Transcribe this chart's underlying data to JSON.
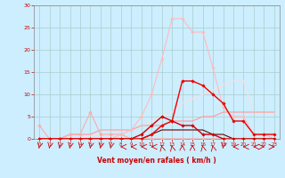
{
  "background_color": "#cceeff",
  "grid_color": "#aacccc",
  "xlabel": "Vent moyen/en rafales ( km/h )",
  "xlabel_color": "#cc0000",
  "tick_color": "#cc0000",
  "xlim": [
    -0.5,
    23.5
  ],
  "ylim": [
    0,
    30
  ],
  "yticks": [
    0,
    5,
    10,
    15,
    20,
    25,
    30
  ],
  "xticks": [
    0,
    1,
    2,
    3,
    4,
    5,
    6,
    7,
    8,
    9,
    10,
    11,
    12,
    13,
    14,
    15,
    16,
    17,
    18,
    19,
    20,
    21,
    22,
    23
  ],
  "series": [
    {
      "x": [
        0,
        1,
        2,
        3,
        4,
        5,
        6,
        7,
        8,
        9,
        10,
        11,
        12,
        13,
        14,
        15,
        16,
        17,
        18,
        19,
        20,
        21,
        22,
        23
      ],
      "y": [
        3,
        0,
        0,
        1,
        1,
        6,
        1,
        1,
        1,
        0,
        0,
        0,
        0,
        0,
        0,
        0,
        0,
        0,
        0,
        0,
        0,
        0,
        0,
        0
      ],
      "color": "#ffaaaa",
      "linewidth": 0.8,
      "marker": "D",
      "markersize": 1.8,
      "linestyle": "-",
      "zorder": 3
    },
    {
      "x": [
        0,
        1,
        2,
        3,
        4,
        5,
        6,
        7,
        8,
        9,
        10,
        11,
        12,
        13,
        14,
        15,
        16,
        17,
        18,
        19,
        20,
        21,
        22,
        23
      ],
      "y": [
        0,
        0,
        0,
        0,
        0,
        0,
        0,
        0,
        1,
        2,
        5,
        10,
        18,
        27,
        27,
        24,
        24,
        16,
        7,
        5,
        5,
        1,
        1,
        0
      ],
      "color": "#ffbbbb",
      "linewidth": 0.8,
      "marker": "D",
      "markersize": 1.8,
      "linestyle": "-",
      "zorder": 3
    },
    {
      "x": [
        0,
        1,
        2,
        3,
        4,
        5,
        6,
        7,
        8,
        9,
        10,
        11,
        12,
        13,
        14,
        15,
        16,
        17,
        18,
        19,
        20,
        21,
        22,
        23
      ],
      "y": [
        0,
        0,
        0,
        0,
        0,
        0,
        0,
        0,
        0,
        0,
        1,
        3,
        5,
        4,
        3,
        3,
        1,
        1,
        0,
        0,
        0,
        0,
        0,
        0
      ],
      "color": "#cc0000",
      "linewidth": 1.0,
      "marker": "D",
      "markersize": 1.8,
      "linestyle": "-",
      "zorder": 4
    },
    {
      "x": [
        0,
        1,
        2,
        3,
        4,
        5,
        6,
        7,
        8,
        9,
        10,
        11,
        12,
        13,
        14,
        15,
        16,
        17,
        18,
        19,
        20,
        21,
        22,
        23
      ],
      "y": [
        0,
        0,
        0,
        0,
        0,
        0,
        0,
        0,
        0,
        0,
        0,
        1,
        3,
        4,
        13,
        13,
        12,
        10,
        8,
        4,
        4,
        1,
        1,
        1
      ],
      "color": "#ee0000",
      "linewidth": 1.0,
      "marker": "D",
      "markersize": 1.8,
      "linestyle": "-",
      "zorder": 4
    },
    {
      "x": [
        0,
        1,
        2,
        3,
        4,
        5,
        6,
        7,
        8,
        9,
        10,
        11,
        12,
        13,
        14,
        15,
        16,
        17,
        18,
        19,
        20,
        21,
        22,
        23
      ],
      "y": [
        0,
        0,
        0,
        0,
        0,
        1,
        1,
        1,
        2,
        2,
        3,
        4,
        5,
        6,
        8,
        9,
        10,
        11,
        12,
        13,
        13,
        6,
        6,
        6
      ],
      "color": "#ffdddd",
      "linewidth": 0.8,
      "marker": null,
      "markersize": 0,
      "linestyle": "-",
      "zorder": 2
    },
    {
      "x": [
        0,
        1,
        2,
        3,
        4,
        5,
        6,
        7,
        8,
        9,
        10,
        11,
        12,
        13,
        14,
        15,
        16,
        17,
        18,
        19,
        20,
        21,
        22,
        23
      ],
      "y": [
        0,
        0,
        0,
        1,
        1,
        1,
        2,
        2,
        2,
        2,
        3,
        3,
        3,
        4,
        4,
        4,
        5,
        5,
        6,
        6,
        6,
        6,
        6,
        6
      ],
      "color": "#ff9999",
      "linewidth": 0.8,
      "marker": null,
      "markersize": 0,
      "linestyle": "-",
      "zorder": 2
    },
    {
      "x": [
        0,
        1,
        2,
        3,
        4,
        5,
        6,
        7,
        8,
        9,
        10,
        11,
        12,
        13,
        14,
        15,
        16,
        17,
        18,
        19,
        20,
        21,
        22,
        23
      ],
      "y": [
        0,
        0,
        0,
        0,
        0,
        0,
        0,
        0,
        0,
        0,
        0,
        1,
        2,
        2,
        2,
        2,
        2,
        1,
        1,
        0,
        0,
        0,
        0,
        0
      ],
      "color": "#660000",
      "linewidth": 0.8,
      "marker": null,
      "markersize": 0,
      "linestyle": "-",
      "zorder": 2
    }
  ],
  "arrow_angles": [
    225,
    225,
    225,
    225,
    225,
    225,
    225,
    225,
    270,
    270,
    270,
    270,
    315,
    315,
    0,
    0,
    315,
    315,
    225,
    270,
    270,
    270,
    90,
    90
  ],
  "arrow_color": "#cc0000"
}
